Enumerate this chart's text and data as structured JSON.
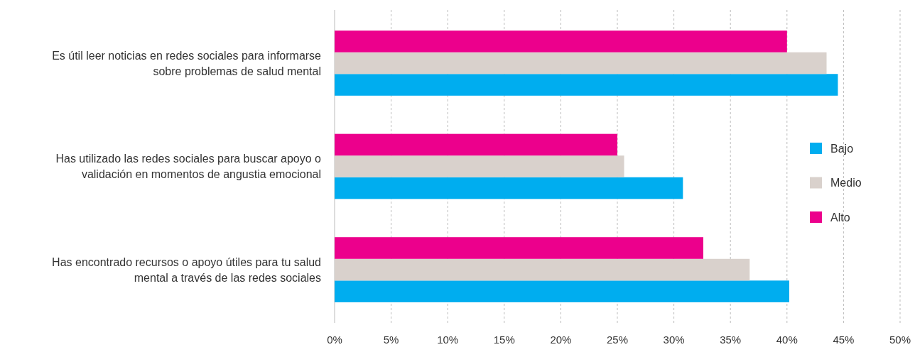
{
  "chart_data": {
    "type": "bar",
    "orientation": "horizontal",
    "categories": [
      "Es útil leer noticias en redes sociales para informarse sobre problemas de salud mental",
      "Has utilizado las redes sociales para buscar apoyo o validación en momentos de angustia emocional",
      "Has encontrado recursos o apoyo útiles para tu salud mental a través de las redes sociales"
    ],
    "series": [
      {
        "name": "Bajo",
        "color": "#00adef",
        "values": [
          44.5,
          30.8,
          40.2
        ]
      },
      {
        "name": "Medio",
        "color": "#d9d1cc",
        "values": [
          43.5,
          25.6,
          36.7
        ]
      },
      {
        "name": "Alto",
        "color": "#ec008c",
        "values": [
          40.0,
          25.0,
          32.6
        ]
      }
    ],
    "xlim": [
      0,
      50
    ],
    "xticks": [
      {
        "value": 0,
        "label": "0%"
      },
      {
        "value": 5,
        "label": "5%"
      },
      {
        "value": 10,
        "label": "10%"
      },
      {
        "value": 15,
        "label": "15%"
      },
      {
        "value": 20,
        "label": "20%"
      },
      {
        "value": 25,
        "label": "25%"
      },
      {
        "value": 30,
        "label": "30%"
      },
      {
        "value": 35,
        "label": "35%"
      },
      {
        "value": 40,
        "label": "40%"
      },
      {
        "value": 45,
        "label": "45%"
      },
      {
        "value": 50,
        "label": "50%"
      }
    ],
    "grid": "x",
    "legend": "right"
  }
}
